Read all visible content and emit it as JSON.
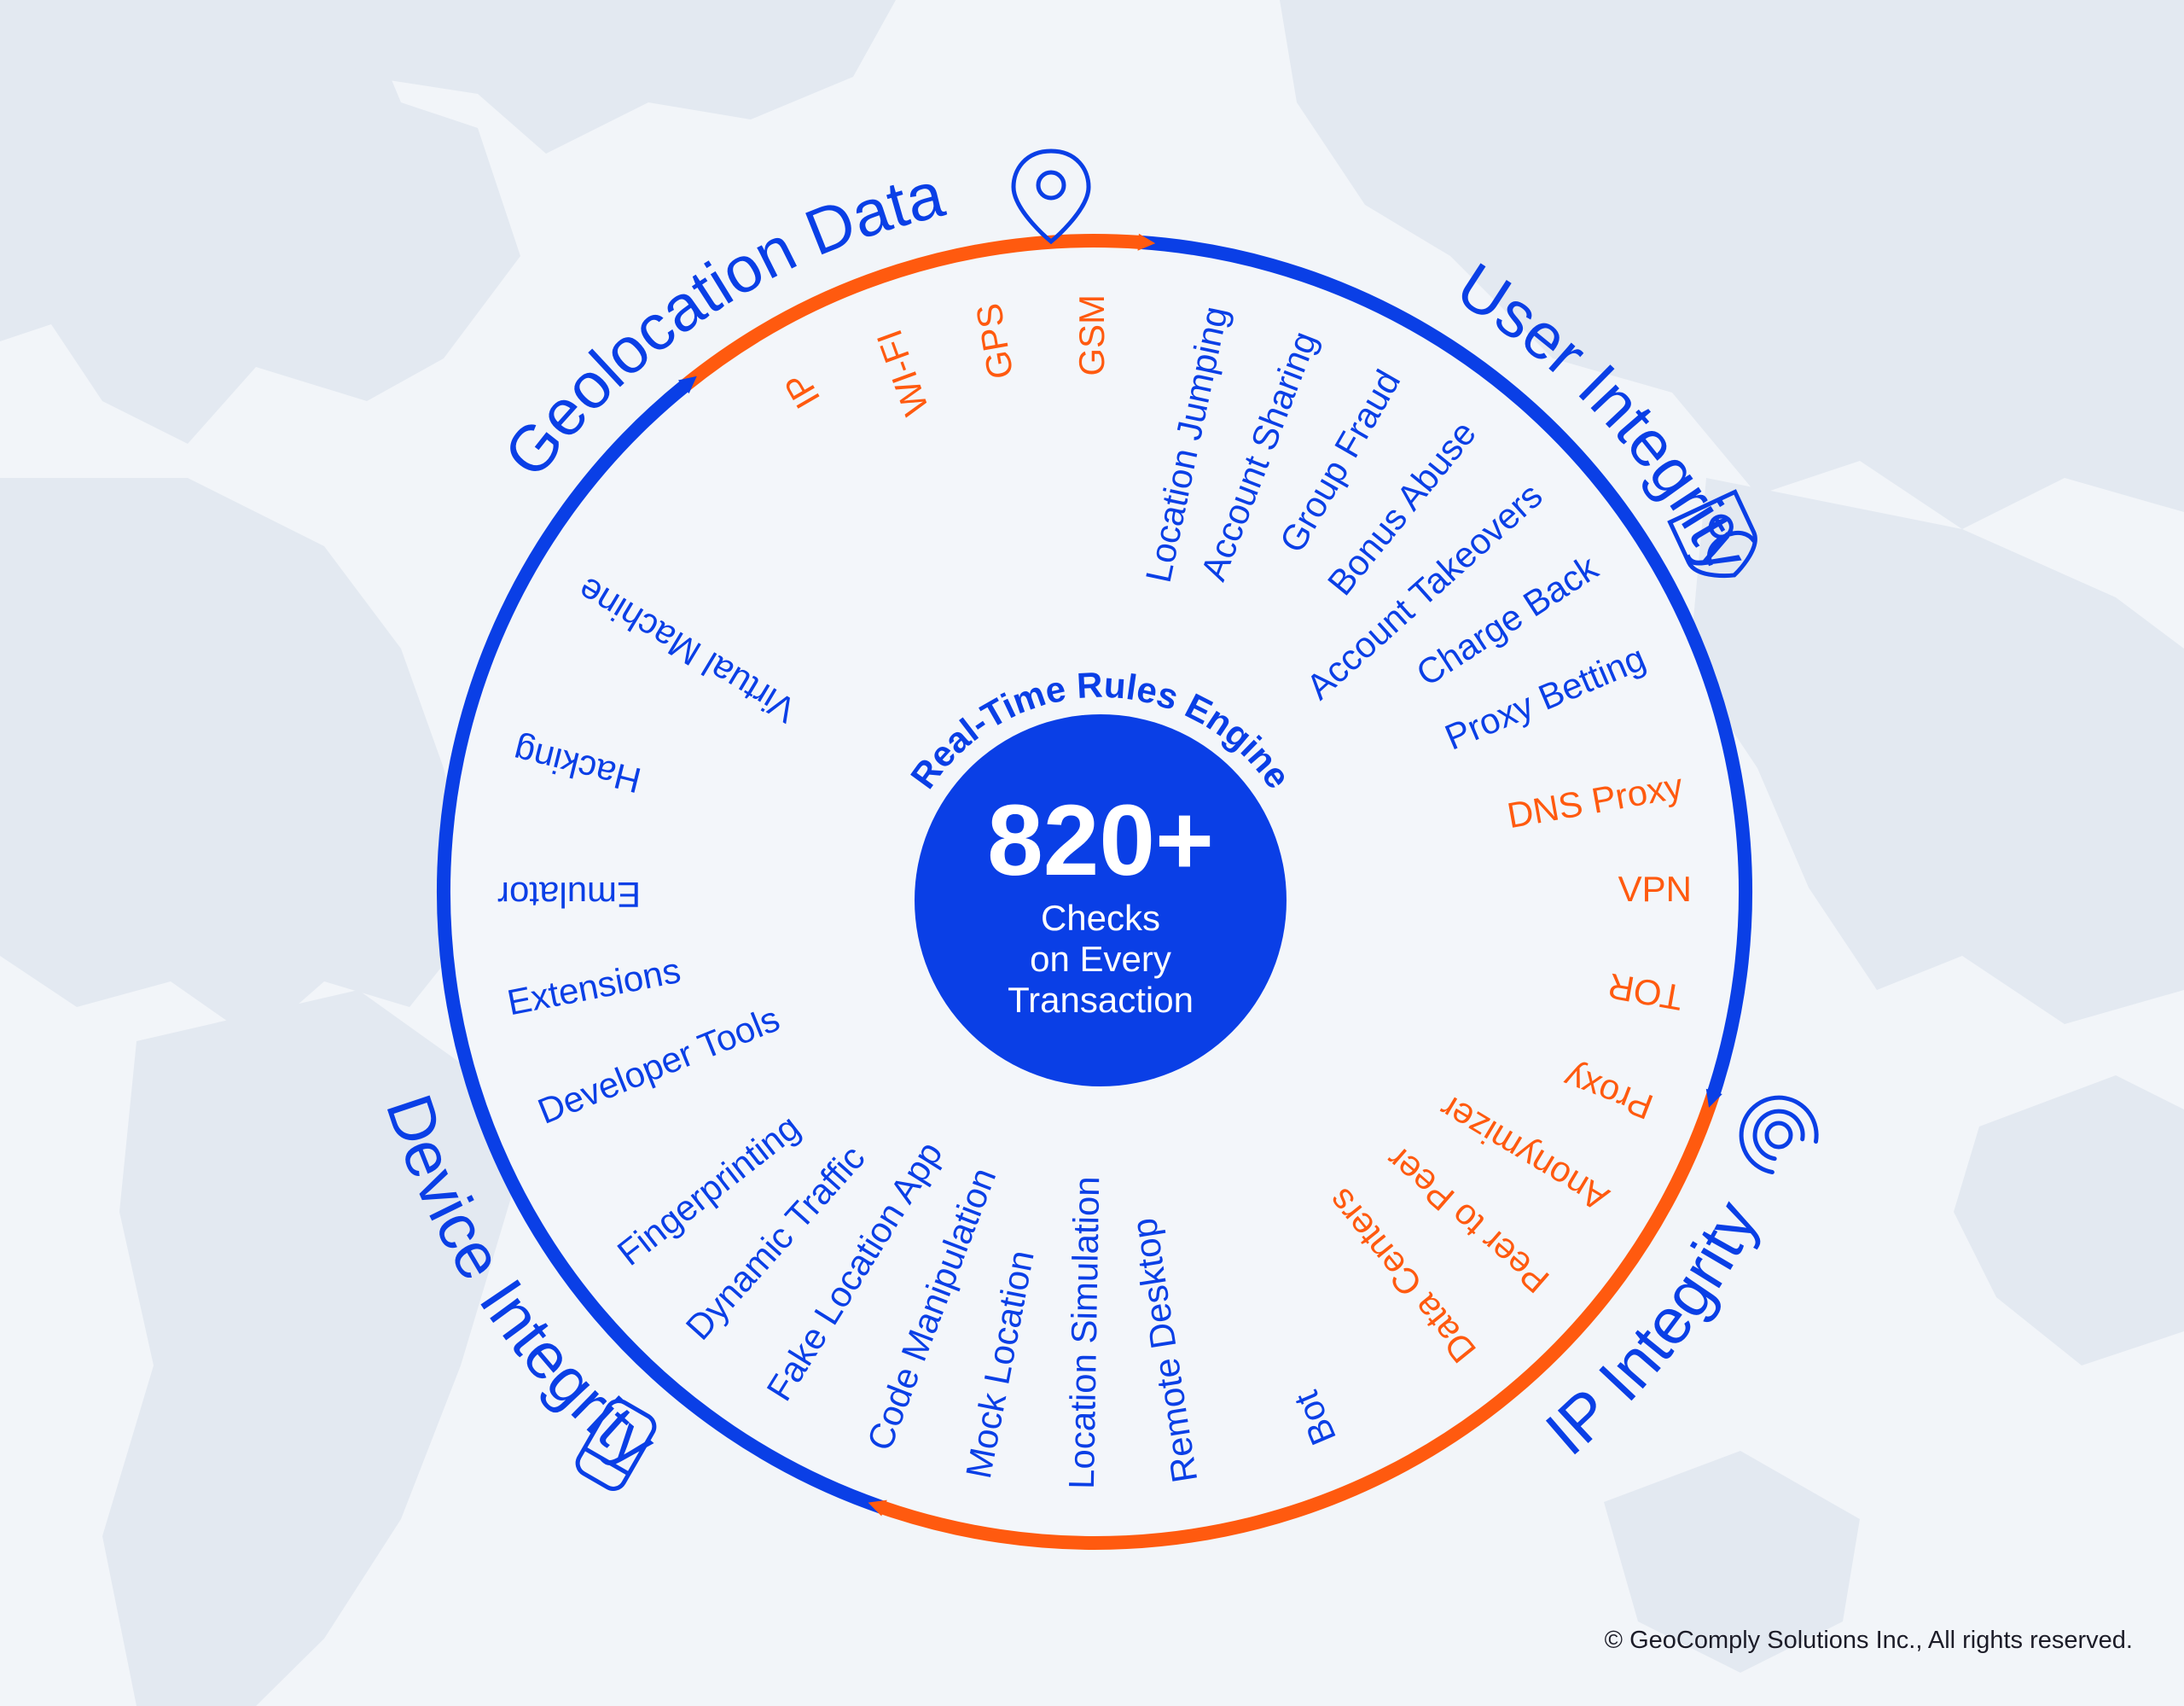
{
  "colors": {
    "blue": "#0a3fe6",
    "orange": "#ff5a0f",
    "map": "#e3e9f1",
    "background": "#f2f5f9"
  },
  "center": {
    "engine_label": "Real-Time Rules Engine",
    "count": "820+",
    "line1": "Checks",
    "line2": "on Every",
    "line3": "Transaction"
  },
  "categories": [
    {
      "name": "Geolocation Data",
      "icon": "location-pin-icon",
      "color": "blue"
    },
    {
      "name": "User Integrity",
      "icon": "user-shield-icon",
      "color": "blue"
    },
    {
      "name": "IP Integrity",
      "icon": "signal-waves-icon",
      "color": "blue"
    },
    {
      "name": "Device Integrity",
      "icon": "mobile-device-icon",
      "color": "blue"
    }
  ],
  "items": [
    {
      "label": "IP",
      "color": "orange"
    },
    {
      "label": "WI-FI",
      "color": "orange"
    },
    {
      "label": "GPS",
      "color": "orange"
    },
    {
      "label": "GSM",
      "color": "orange"
    },
    {
      "label": "Location Jumping",
      "color": "blue"
    },
    {
      "label": "Account Sharing",
      "color": "blue"
    },
    {
      "label": "Group Fraud",
      "color": "blue"
    },
    {
      "label": "Bonus Abuse",
      "color": "blue"
    },
    {
      "label": "Account Takeovers",
      "color": "blue"
    },
    {
      "label": "Charge Back",
      "color": "blue"
    },
    {
      "label": "Proxy Betting",
      "color": "blue"
    },
    {
      "label": "DNS Proxy",
      "color": "orange"
    },
    {
      "label": "VPN",
      "color": "orange"
    },
    {
      "label": "TOR",
      "color": "orange"
    },
    {
      "label": "Proxy",
      "color": "orange"
    },
    {
      "label": "Anonymizer",
      "color": "orange"
    },
    {
      "label": "Peer to Peer",
      "color": "orange"
    },
    {
      "label": "Data Centers",
      "color": "orange"
    },
    {
      "label": "Bot",
      "color": "blue"
    },
    {
      "label": "Remote Desktop",
      "color": "blue"
    },
    {
      "label": "Location Simulation",
      "color": "blue"
    },
    {
      "label": "Mock Location",
      "color": "blue"
    },
    {
      "label": "Code Manipulation",
      "color": "blue"
    },
    {
      "label": "Fake Location App",
      "color": "blue"
    },
    {
      "label": "Dynamic Traffic",
      "color": "blue"
    },
    {
      "label": "Fingerprinting",
      "color": "blue"
    },
    {
      "label": "Developer Tools",
      "color": "blue"
    },
    {
      "label": "Extensions",
      "color": "blue"
    },
    {
      "label": "Emulator",
      "color": "blue"
    },
    {
      "label": "Hacking",
      "color": "blue"
    },
    {
      "label": "Virtual Machine",
      "color": "blue"
    }
  ],
  "ring_segments": [
    {
      "color": "orange"
    },
    {
      "color": "blue"
    },
    {
      "color": "orange"
    },
    {
      "color": "blue"
    }
  ],
  "footer": "© GeoComply Solutions Inc., All rights reserved."
}
